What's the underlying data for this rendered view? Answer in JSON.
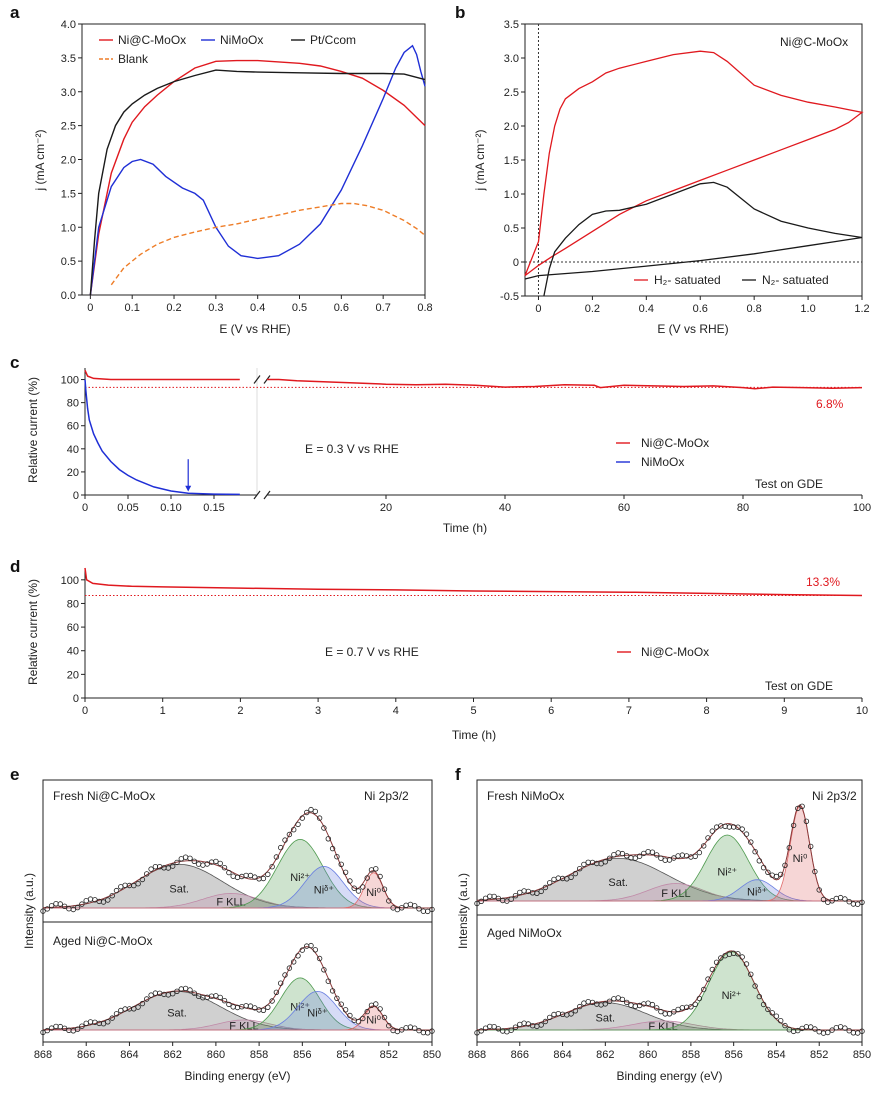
{
  "panels": {
    "a": {
      "letter": "a"
    },
    "b": {
      "letter": "b",
      "annotation": "Ni@C-MoOx"
    },
    "c": {
      "letter": "c",
      "condition": "E = 0.3 V vs RHE",
      "test_note": "Test on GDE",
      "loss_label": "6.8%"
    },
    "d": {
      "letter": "d",
      "condition": "E = 0.7 V vs RHE",
      "test_note": "Test on GDE",
      "loss_label": "13.3%"
    },
    "e": {
      "letter": "e",
      "fresh_label": "Fresh Ni@C-MoOx",
      "aged_label": "Aged Ni@C-MoOx",
      "region": "Ni 2p3/2"
    },
    "f": {
      "letter": "f",
      "fresh_label": "Fresh NiMoOx",
      "aged_label": "Aged NiMoOx",
      "region": "Ni 2p3/2"
    }
  },
  "colors": {
    "red": "#e0191f",
    "blue": "#1f2fd6",
    "black": "#1a1a1a",
    "orange": "#ee7d28",
    "grey": "#555555",
    "green": "#4f9a4f",
    "pink": "#e06a6a",
    "ltblue": "#6a7fe0",
    "mauve": "#c08aa8"
  },
  "chart_data": [
    {
      "id": "a",
      "type": "line",
      "xlabel": "E (V vs RHE)",
      "ylabel": "j (mA cm⁻²)",
      "xlim": [
        -0.02,
        0.8
      ],
      "ylim": [
        0,
        4.0
      ],
      "xticks": [
        0,
        0.1,
        0.2,
        0.3,
        0.4,
        0.5,
        0.6,
        0.7,
        0.8
      ],
      "yticks": [
        0,
        0.5,
        1.0,
        1.5,
        2.0,
        2.5,
        3.0,
        3.5,
        4.0
      ],
      "series": [
        {
          "name": "Ni@C-MoOx",
          "color": "red",
          "dash": false,
          "x": [
            0.0,
            0.02,
            0.05,
            0.08,
            0.1,
            0.13,
            0.16,
            0.2,
            0.25,
            0.3,
            0.35,
            0.4,
            0.45,
            0.5,
            0.55,
            0.6,
            0.65,
            0.7,
            0.75,
            0.8
          ],
          "y": [
            0.0,
            0.9,
            1.8,
            2.3,
            2.55,
            2.78,
            2.95,
            3.15,
            3.35,
            3.45,
            3.46,
            3.46,
            3.44,
            3.42,
            3.38,
            3.3,
            3.2,
            3.02,
            2.8,
            2.5
          ]
        },
        {
          "name": "NiMoOx",
          "color": "blue",
          "dash": false,
          "x": [
            0.0,
            0.02,
            0.05,
            0.08,
            0.1,
            0.12,
            0.15,
            0.18,
            0.22,
            0.25,
            0.27,
            0.3,
            0.33,
            0.36,
            0.4,
            0.45,
            0.5,
            0.55,
            0.6,
            0.65,
            0.7,
            0.73,
            0.75,
            0.77,
            0.78,
            0.79,
            0.8
          ],
          "y": [
            0.0,
            1.0,
            1.6,
            1.88,
            1.97,
            2.0,
            1.93,
            1.75,
            1.58,
            1.5,
            1.4,
            1.0,
            0.72,
            0.58,
            0.54,
            0.58,
            0.75,
            1.05,
            1.55,
            2.2,
            2.9,
            3.35,
            3.58,
            3.68,
            3.55,
            3.3,
            3.08
          ]
        },
        {
          "name": "Pt/Ccom",
          "color": "black",
          "dash": false,
          "x": [
            0.0,
            0.01,
            0.02,
            0.04,
            0.06,
            0.08,
            0.1,
            0.13,
            0.16,
            0.2,
            0.25,
            0.3,
            0.35,
            0.4,
            0.5,
            0.6,
            0.7,
            0.75,
            0.8
          ],
          "y": [
            0.0,
            0.8,
            1.5,
            2.15,
            2.5,
            2.7,
            2.82,
            2.95,
            3.05,
            3.15,
            3.24,
            3.32,
            3.3,
            3.29,
            3.28,
            3.27,
            3.27,
            3.26,
            3.18
          ]
        },
        {
          "name": "Blank",
          "color": "orange",
          "dash": true,
          "x": [
            0.05,
            0.08,
            0.12,
            0.16,
            0.2,
            0.25,
            0.3,
            0.35,
            0.4,
            0.45,
            0.5,
            0.55,
            0.6,
            0.63,
            0.66,
            0.7,
            0.75,
            0.78,
            0.8
          ],
          "y": [
            0.15,
            0.4,
            0.6,
            0.75,
            0.85,
            0.93,
            1.0,
            1.05,
            1.12,
            1.18,
            1.25,
            1.3,
            1.35,
            1.35,
            1.32,
            1.25,
            1.1,
            0.98,
            0.88
          ]
        }
      ]
    },
    {
      "id": "b",
      "type": "line",
      "xlabel": "E (V vs RHE)",
      "ylabel": "j (mA cm⁻²)",
      "xlim": [
        -0.05,
        1.2
      ],
      "ylim": [
        -0.5,
        3.5
      ],
      "xticks": [
        0,
        0.2,
        0.4,
        0.6,
        0.8,
        1.0,
        1.2
      ],
      "yticks": [
        -0.5,
        0,
        0.5,
        1.0,
        1.5,
        2.0,
        2.5,
        3.0,
        3.5
      ],
      "series": [
        {
          "name": "H₂- satuated",
          "color": "red",
          "dash": false,
          "x": [
            -0.05,
            0.0,
            0.02,
            0.04,
            0.06,
            0.08,
            0.1,
            0.15,
            0.2,
            0.25,
            0.3,
            0.4,
            0.5,
            0.6,
            0.65,
            0.7,
            0.8,
            0.9,
            1.0,
            1.1,
            1.2,
            1.15,
            1.1,
            1.0,
            0.9,
            0.8,
            0.7,
            0.6,
            0.5,
            0.4,
            0.3,
            0.2,
            0.1,
            0.05,
            0.0,
            -0.05
          ],
          "y": [
            -0.2,
            0.3,
            1.0,
            1.6,
            2.0,
            2.25,
            2.4,
            2.55,
            2.65,
            2.78,
            2.85,
            2.95,
            3.05,
            3.1,
            3.08,
            2.95,
            2.6,
            2.45,
            2.35,
            2.28,
            2.2,
            2.05,
            1.95,
            1.8,
            1.65,
            1.5,
            1.35,
            1.2,
            1.05,
            0.9,
            0.7,
            0.45,
            0.2,
            0.08,
            -0.05,
            -0.2
          ]
        },
        {
          "name": "N₂- satuated",
          "color": "black",
          "dash": false,
          "x": [
            0.02,
            0.04,
            0.06,
            0.1,
            0.15,
            0.2,
            0.25,
            0.3,
            0.4,
            0.5,
            0.6,
            0.65,
            0.7,
            0.8,
            0.9,
            1.0,
            1.1,
            1.2,
            1.1,
            1.0,
            0.8,
            0.6,
            0.4,
            0.2,
            0.0,
            -0.05
          ],
          "y": [
            -0.5,
            -0.1,
            0.15,
            0.35,
            0.55,
            0.7,
            0.75,
            0.76,
            0.85,
            1.0,
            1.15,
            1.17,
            1.1,
            0.78,
            0.6,
            0.5,
            0.42,
            0.36,
            0.3,
            0.24,
            0.12,
            0.02,
            -0.06,
            -0.14,
            -0.2,
            -0.25
          ]
        }
      ]
    },
    {
      "id": "c",
      "type": "line",
      "xlabel": "Time (h)",
      "ylabel": "Relative current (%)",
      "axis_break": true,
      "xlim_left": [
        0,
        0.2
      ],
      "xlim_right": [
        0,
        100
      ],
      "xticks_left": [
        0,
        0.05,
        0.1,
        0.15
      ],
      "xtick_labels_left": [
        "0",
        "0.05",
        "0.10",
        "0.15"
      ],
      "xticks_right": [
        20,
        40,
        60,
        80,
        100
      ],
      "ylim": [
        0,
        110
      ],
      "yticks": [
        0,
        20,
        40,
        60,
        80,
        100
      ],
      "reference_line": 93.2,
      "arrow_at": 0.12,
      "series": [
        {
          "name": "Ni@C-MoOx",
          "color": "red",
          "left": {
            "x": [
              0,
              0.003,
              0.01,
              0.03,
              0.1,
              0.18
            ],
            "y": [
              108,
              103,
              101,
              100,
              100,
              100
            ]
          },
          "right": {
            "x": [
              0,
              2,
              5,
              10,
              15,
              20,
              25,
              30,
              35,
              40,
              45,
              50,
              55,
              56,
              60,
              65,
              70,
              75,
              80,
              82,
              85,
              90,
              95,
              100
            ],
            "y": [
              100,
              100,
              99,
              98,
              97,
              96,
              95.5,
              96,
              95,
              93.5,
              94,
              95.5,
              95,
              93,
              95,
              94.5,
              94,
              94.5,
              93,
              92,
              93.5,
              93,
              92.5,
              93
            ]
          }
        },
        {
          "name": "NiMoOx",
          "color": "blue",
          "left": {
            "x": [
              0,
              0.001,
              0.003,
              0.005,
              0.01,
              0.015,
              0.02,
              0.03,
              0.04,
              0.05,
              0.06,
              0.08,
              0.1,
              0.12,
              0.15,
              0.18
            ],
            "y": [
              100,
              90,
              75,
              65,
              53,
              45,
              38,
              29,
              22,
              17,
              13,
              7,
              3.5,
              1.5,
              0.8,
              0.5
            ]
          },
          "right": null
        }
      ]
    },
    {
      "id": "d",
      "type": "line",
      "xlabel": "Time (h)",
      "ylabel": "Relative current (%)",
      "xlim": [
        0,
        10
      ],
      "ylim": [
        0,
        110
      ],
      "xticks": [
        0,
        1,
        2,
        3,
        4,
        5,
        6,
        7,
        8,
        9,
        10
      ],
      "yticks": [
        0,
        20,
        40,
        60,
        80,
        100
      ],
      "reference_line": 86.7,
      "series": [
        {
          "name": "Ni@C-MoOx",
          "color": "red",
          "x": [
            0,
            0.02,
            0.1,
            0.3,
            0.6,
            1,
            2,
            3,
            4,
            5,
            6,
            7,
            8,
            9,
            10
          ],
          "y": [
            110,
            100,
            97,
            95.5,
            94.5,
            94,
            93,
            92,
            91.5,
            90.5,
            90,
            89.5,
            88.5,
            87.5,
            86.7
          ]
        }
      ]
    },
    {
      "id": "e",
      "type": "line",
      "subtype": "xps",
      "xlabel": "Binding energy (eV)",
      "ylabel": "Intensity (a.u.)",
      "xlim": [
        868,
        850
      ],
      "xticks": [
        868,
        866,
        864,
        862,
        860,
        858,
        856,
        854,
        852,
        850
      ],
      "fresh": {
        "peaks": [
          {
            "label": "Sat.",
            "center": 861.7,
            "height": 0.42,
            "width": 2.0,
            "color": "grey"
          },
          {
            "label": "F KLL",
            "center": 859.3,
            "height": 0.14,
            "width": 1.3,
            "color": "mauve"
          },
          {
            "label": "Ni²⁺",
            "center": 856.1,
            "height": 0.66,
            "width": 1.05,
            "color": "green"
          },
          {
            "label": "Niᵟ⁺",
            "center": 855.0,
            "height": 0.4,
            "width": 0.9,
            "color": "ltblue"
          },
          {
            "label": "Ni⁰",
            "center": 852.7,
            "height": 0.34,
            "width": 0.42,
            "color": "pink"
          }
        ],
        "envelope_peak": 0.95
      },
      "aged": {
        "peaks": [
          {
            "label": "Sat.",
            "center": 861.8,
            "height": 0.46,
            "width": 2.0,
            "color": "grey"
          },
          {
            "label": "F KLL",
            "center": 858.7,
            "height": 0.12,
            "width": 1.2,
            "color": "mauve"
          },
          {
            "label": "Ni²⁺",
            "center": 856.1,
            "height": 0.62,
            "width": 0.9,
            "color": "green"
          },
          {
            "label": "Niᵟ⁺",
            "center": 855.3,
            "height": 0.46,
            "width": 0.9,
            "color": "ltblue"
          },
          {
            "label": "Ni⁰",
            "center": 852.7,
            "height": 0.28,
            "width": 0.42,
            "color": "pink"
          }
        ],
        "envelope_peak": 1.02
      }
    },
    {
      "id": "f",
      "type": "line",
      "subtype": "xps",
      "xlabel": "Binding energy (eV)",
      "ylabel": "Intensity (a.u.)",
      "xlim": [
        868,
        850
      ],
      "xticks": [
        868,
        866,
        864,
        862,
        860,
        858,
        856,
        854,
        852,
        850
      ],
      "fresh": {
        "peaks": [
          {
            "label": "Sat.",
            "center": 861.4,
            "height": 0.44,
            "width": 2.3,
            "color": "grey"
          },
          {
            "label": "F KLL",
            "center": 858.7,
            "height": 0.18,
            "width": 1.3,
            "color": "mauve"
          },
          {
            "label": "Ni²⁺",
            "center": 856.3,
            "height": 0.68,
            "width": 1.0,
            "color": "green"
          },
          {
            "label": "Niᵟ⁺",
            "center": 854.9,
            "height": 0.22,
            "width": 0.8,
            "color": "ltblue"
          },
          {
            "label": "Ni⁰",
            "center": 852.9,
            "height": 0.98,
            "width": 0.45,
            "color": "pink"
          }
        ],
        "envelope_peak": 1.0
      },
      "aged": {
        "peaks": [
          {
            "label": "Sat.",
            "center": 862.0,
            "height": 0.3,
            "width": 1.9,
            "color": "grey"
          },
          {
            "label": "F KLL",
            "center": 859.3,
            "height": 0.1,
            "width": 1.4,
            "color": "mauve"
          },
          {
            "label": "Ni²⁺",
            "center": 856.1,
            "height": 0.86,
            "width": 1.05,
            "color": "green"
          }
        ],
        "envelope_peak": 0.86
      }
    }
  ]
}
